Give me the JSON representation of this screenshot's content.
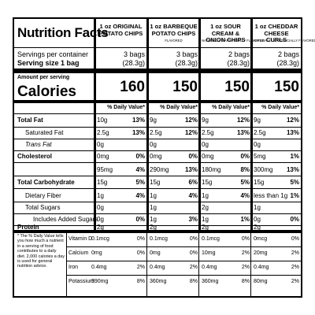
{
  "label": {
    "title": "Nutrition Facts",
    "servings_per_container_label": "Servings per container",
    "serving_size_label": "Serving size 1 bag",
    "amount_per_serving_label": "Amount per serving",
    "calories_label": "Calories",
    "daily_value_header": "% Daily Value*",
    "footnote": "* The % Daily Value tells you how much a nutrient in a serving of food contributes to a daily diet. 2,000 calories a day is used for general nutrition advice."
  },
  "products": [
    {
      "name": "1 oz ORIGINAL POTATO CHIPS",
      "flavor_note": "",
      "servings_per_container": "3 bags",
      "serving_weight": "(28.3g)",
      "calories": "160"
    },
    {
      "name": "1 oz BARBEQUE POTATO CHIPS",
      "flavor_note": "FLAVORED",
      "servings_per_container": "3 bags",
      "serving_weight": "(28.3g)",
      "calories": "150"
    },
    {
      "name": "1 oz SOUR CREAM & ONION CHIPS",
      "flavor_note": "NATURALLY & ARTIFICIALLY FLAVORED",
      "servings_per_container": "2 bags",
      "serving_weight": "(28.3g)",
      "calories": "150"
    },
    {
      "name": "1 oz CHEDDAR CHEESE CURLS",
      "flavor_note": "NATURALLY & ARTIFICIALLY FLAVORED",
      "servings_per_container": "2 bags",
      "serving_weight": "(28.3g)",
      "calories": "150"
    }
  ],
  "nutrients": [
    {
      "label": "Total Fat",
      "values": [
        [
          "10g",
          "13%"
        ],
        [
          "9g",
          "12%"
        ],
        [
          "9g",
          "12%"
        ],
        [
          "9g",
          "12%"
        ]
      ]
    },
    {
      "label": "Saturated Fat",
      "values": [
        [
          "2.5g",
          "13%"
        ],
        [
          "2.5g",
          "12%"
        ],
        [
          "2.5g",
          "13%"
        ],
        [
          "2.5g",
          "13%"
        ]
      ]
    },
    {
      "label": "Trans Fat",
      "values": [
        [
          "0g",
          ""
        ],
        [
          "0g",
          ""
        ],
        [
          "0g",
          ""
        ],
        [
          "0g",
          ""
        ]
      ]
    },
    {
      "label": "Cholesterol",
      "values": [
        [
          "0mg",
          "0%"
        ],
        [
          "0mg",
          "0%"
        ],
        [
          "0mg",
          "0%"
        ],
        [
          "5mg",
          "1%"
        ]
      ]
    },
    {
      "label": "Sodium",
      "values": [
        [
          "95mg",
          "4%"
        ],
        [
          "290mg",
          "13%"
        ],
        [
          "180mg",
          "8%"
        ],
        [
          "300mg",
          "13%"
        ]
      ]
    },
    {
      "label": "Total Carbohydrate",
      "values": [
        [
          "15g",
          "5%"
        ],
        [
          "15g",
          "6%"
        ],
        [
          "15g",
          "5%"
        ],
        [
          "15g",
          "5%"
        ]
      ]
    },
    {
      "label": "Dietary Fiber",
      "values": [
        [
          "1g",
          "4%"
        ],
        [
          "1g",
          "4%"
        ],
        [
          "1g",
          "4%"
        ],
        [
          "less than 1g",
          "1%"
        ]
      ]
    },
    {
      "label": "Total Sugars",
      "values": [
        [
          "0g",
          ""
        ],
        [
          "1g",
          ""
        ],
        [
          "2g",
          ""
        ],
        [
          "1g",
          ""
        ]
      ]
    },
    {
      "label": "Includes Added Sugars",
      "values": [
        [
          "0g",
          "0%"
        ],
        [
          "1g",
          "3%"
        ],
        [
          "1g",
          "1%"
        ],
        [
          "0g",
          "0%"
        ]
      ]
    },
    {
      "label": "Protein",
      "values": [
        [
          "2g",
          ""
        ],
        [
          "2g",
          ""
        ],
        [
          "2g",
          ""
        ],
        [
          "2g",
          ""
        ]
      ]
    }
  ],
  "vitamins": [
    {
      "label": "Vitamin D",
      "values": [
        [
          "0.1mcg",
          "0%"
        ],
        [
          "0.1mcg",
          "0%"
        ],
        [
          "0.1mcg",
          "0%"
        ],
        [
          "0mcg",
          "0%"
        ]
      ]
    },
    {
      "label": "Calcium",
      "values": [
        [
          "0mg",
          "0%"
        ],
        [
          "0mg",
          "0%"
        ],
        [
          "10mg",
          "2%"
        ],
        [
          "20mg",
          "2%"
        ]
      ]
    },
    {
      "label": "Iron",
      "values": [
        [
          "0.4mg",
          "2%"
        ],
        [
          "0.4mg",
          "2%"
        ],
        [
          "0.4mg",
          "2%"
        ],
        [
          "0.4mg",
          "2%"
        ]
      ]
    },
    {
      "label": "Potassium",
      "values": [
        [
          "390mg",
          "8%"
        ],
        [
          "360mg",
          "8%"
        ],
        [
          "360mg",
          "8%"
        ],
        [
          "80mg",
          "2%"
        ]
      ]
    }
  ]
}
